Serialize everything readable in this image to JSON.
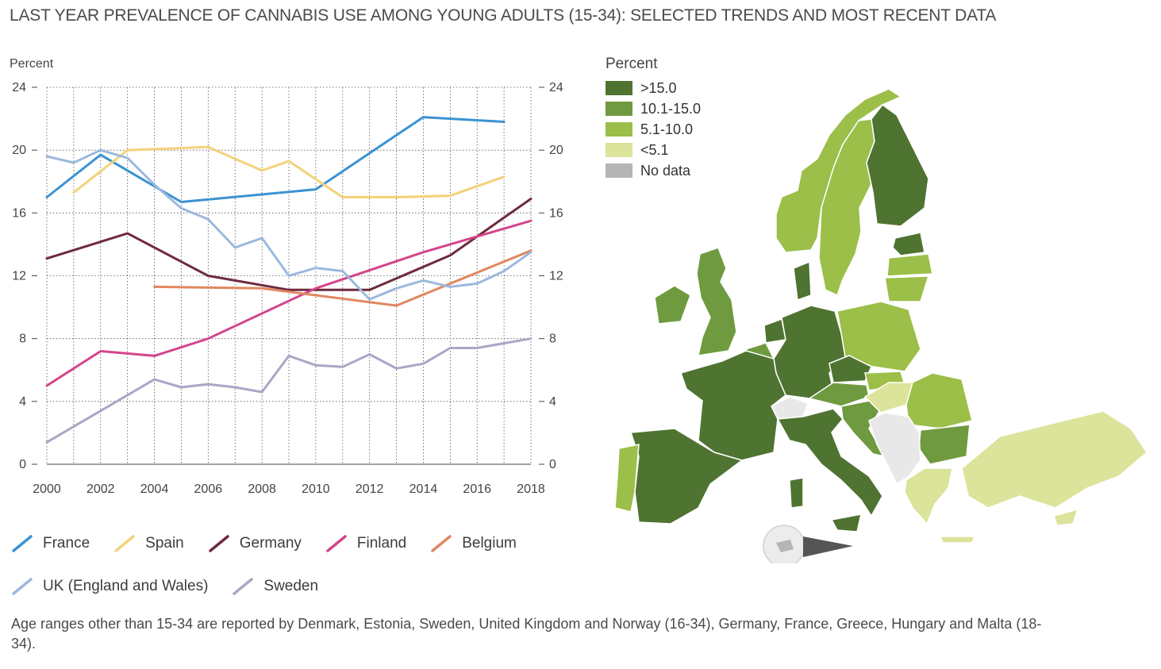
{
  "title": "LAST YEAR PREVALENCE OF CANNABIS USE AMONG YOUNG ADULTS (15-34): SELECTED TRENDS AND MOST RECENT DATA",
  "chart_data": {
    "type": "line",
    "ylabel": "Percent",
    "ylim": [
      0,
      24
    ],
    "yticks": [
      0,
      4,
      8,
      12,
      16,
      20,
      24
    ],
    "xlim": [
      2000,
      2018
    ],
    "xticks": [
      2000,
      2002,
      2004,
      2006,
      2008,
      2010,
      2012,
      2014,
      2016,
      2018
    ],
    "grid": true,
    "legend_position": "bottom",
    "series": [
      {
        "name": "France",
        "color": "#3b93d1",
        "points": [
          [
            2000,
            17.0
          ],
          [
            2002,
            19.7
          ],
          [
            2005,
            16.7
          ],
          [
            2010,
            17.5
          ],
          [
            2014,
            22.1
          ],
          [
            2017,
            21.8
          ]
        ]
      },
      {
        "name": "Spain",
        "color": "#f3d27a",
        "points": [
          [
            2001,
            17.3
          ],
          [
            2003,
            20.0
          ],
          [
            2006,
            20.2
          ],
          [
            2008,
            18.7
          ],
          [
            2009,
            19.3
          ],
          [
            2011,
            17.0
          ],
          [
            2013,
            17.0
          ],
          [
            2015,
            17.1
          ],
          [
            2017,
            18.3
          ]
        ]
      },
      {
        "name": "Germany",
        "color": "#6e2a3e",
        "points": [
          [
            2000,
            13.1
          ],
          [
            2003,
            14.7
          ],
          [
            2006,
            12.0
          ],
          [
            2009,
            11.1
          ],
          [
            2012,
            11.1
          ],
          [
            2015,
            13.3
          ],
          [
            2018,
            16.9
          ]
        ]
      },
      {
        "name": "Finland",
        "color": "#d4458a",
        "points": [
          [
            2000,
            5.0
          ],
          [
            2002,
            7.2
          ],
          [
            2004,
            6.9
          ],
          [
            2006,
            8.0
          ],
          [
            2010,
            11.2
          ],
          [
            2014,
            13.5
          ],
          [
            2018,
            15.5
          ]
        ]
      },
      {
        "name": "Belgium",
        "color": "#e08860",
        "points": [
          [
            2004,
            11.3
          ],
          [
            2008,
            11.2
          ],
          [
            2013,
            10.1
          ],
          [
            2018,
            13.6
          ]
        ]
      },
      {
        "name": "UK (England and Wales)",
        "color": "#9cb9de",
        "points": [
          [
            2000,
            19.6
          ],
          [
            2001,
            19.2
          ],
          [
            2002,
            20.0
          ],
          [
            2003,
            19.5
          ],
          [
            2004,
            17.8
          ],
          [
            2005,
            16.3
          ],
          [
            2006,
            15.6
          ],
          [
            2007,
            13.8
          ],
          [
            2008,
            14.4
          ],
          [
            2009,
            12.0
          ],
          [
            2010,
            12.5
          ],
          [
            2011,
            12.3
          ],
          [
            2012,
            10.5
          ],
          [
            2013,
            11.2
          ],
          [
            2014,
            11.7
          ],
          [
            2015,
            11.3
          ],
          [
            2016,
            11.5
          ],
          [
            2017,
            12.3
          ],
          [
            2018,
            13.5
          ]
        ]
      },
      {
        "name": "Sweden",
        "color": "#aba6c6",
        "points": [
          [
            2000,
            1.4
          ],
          [
            2004,
            5.4
          ],
          [
            2005,
            4.9
          ],
          [
            2006,
            5.1
          ],
          [
            2007,
            4.9
          ],
          [
            2008,
            4.6
          ],
          [
            2009,
            6.9
          ],
          [
            2010,
            6.3
          ],
          [
            2011,
            6.2
          ],
          [
            2012,
            7.0
          ],
          [
            2013,
            6.1
          ],
          [
            2014,
            6.4
          ],
          [
            2015,
            7.4
          ],
          [
            2016,
            7.4
          ],
          [
            2018,
            8.0
          ]
        ]
      }
    ]
  },
  "map_legend": {
    "title": "Percent",
    "items": [
      {
        "label": ">15.0",
        "color": "#4f7331"
      },
      {
        "label": "10.1-15.0",
        "color": "#6f9a3f"
      },
      {
        "label": "5.1-10.0",
        "color": "#9bbf48"
      },
      {
        "label": "<5.1",
        "color": "#dce39b"
      },
      {
        "label": "No data",
        "color": "#b5b5b5"
      }
    ]
  },
  "footnote": "Age ranges other than 15-34 are reported by Denmark, Estonia, Sweden, United Kingdom and Norway (16-34), Germany, France, Greece, Hungary and Malta (18-34)."
}
